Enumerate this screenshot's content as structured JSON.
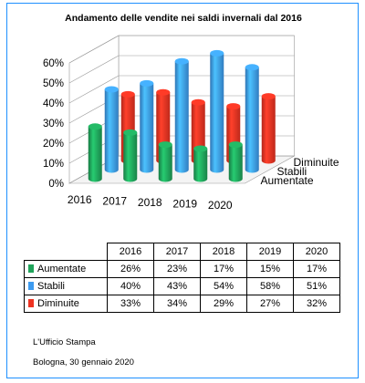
{
  "footer": {
    "office": "L'Ufficio Stampa",
    "place_date": "Bologna, 30 gennaio 2020"
  },
  "chart_data": {
    "type": "bar",
    "variant": "3d-cylinder",
    "title": "Andamento delle vendite nei saldi invernali dal 2016",
    "categories": [
      "2016",
      "2017",
      "2018",
      "2019",
      "2020"
    ],
    "series": [
      {
        "name": "Aumentate",
        "values": [
          26,
          23,
          17,
          15,
          17
        ],
        "color": "#1fa35a",
        "labels": [
          "26%",
          "23%",
          "17%",
          "15%",
          "17%"
        ]
      },
      {
        "name": "Stabili",
        "values": [
          40,
          43,
          54,
          58,
          51
        ],
        "color": "#3d9bf0",
        "labels": [
          "40%",
          "43%",
          "54%",
          "58%",
          "51%"
        ]
      },
      {
        "name": "Diminuite",
        "values": [
          33,
          34,
          29,
          27,
          32
        ],
        "color": "#ee3322",
        "labels": [
          "33%",
          "34%",
          "29%",
          "27%",
          "32%"
        ]
      }
    ],
    "ylim": [
      0,
      60
    ],
    "yticks": [
      "0%",
      "10%",
      "20%",
      "30%",
      "40%",
      "50%",
      "60%"
    ],
    "grid": true,
    "legend": "data-table"
  }
}
